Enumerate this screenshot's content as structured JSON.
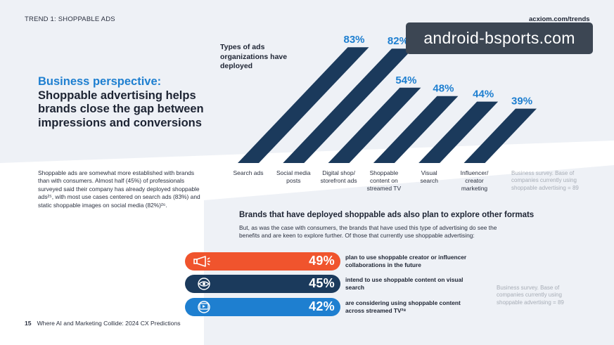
{
  "header": {
    "trend_label": "TREND 1: SHOPPABLE ADS",
    "site_url": "acxiom.com/trends"
  },
  "watermark": "android-bsports.com",
  "headline": {
    "accent": "Business perspective:",
    "main": "Shoppable advertising helps brands close the gap between impressions and conversions"
  },
  "body_copy": "Shoppable ads are somewhat more established with brands than with consumers. Almost half (45%) of professionals surveyed said their company has already deployed shoppable ads²⁵, with most use cases centered on search ads (83%) and static shoppable images on social media (82%)²⁶.",
  "chart_data": {
    "type": "bar",
    "title": "Types of ads organizations have deployed",
    "categories": [
      "Search ads",
      "Social media posts",
      "Digital shop/ storefront ads",
      "Shoppable content on streamed TV",
      "Visual search",
      "Influencer/ creator marketing"
    ],
    "values": [
      83,
      82,
      54,
      48,
      44,
      39
    ],
    "value_format": "{v}%",
    "ylim": [
      0,
      100
    ],
    "bar_colors": [
      "#1b3a5c",
      "#1b3a5c",
      "#1b3a5c",
      "#1b3a5c",
      "#1b3a5c",
      "#1b3a5c"
    ],
    "label_colors": [
      "#1e7fd0",
      "#1e7fd0",
      "#1e7fd0",
      "#1e7fd0",
      "#1e7fd0",
      "#1e7fd0"
    ],
    "grid": false,
    "source": "Business survey. Base of companies currently using shoppable advertising = 89"
  },
  "section2": {
    "title": "Brands that have deployed shoppable ads also plan to explore other formats",
    "intro": "But, as was the case with consumers, the brands that have used this type of advertising do see the benefits and are keen to explore further. Of those that currently use shoppable advertising:",
    "items": [
      {
        "pct": "49%",
        "text": "plan to use shoppable creator or influencer collaborations in the future",
        "color": "#f0542d",
        "icon": "megaphone-icon"
      },
      {
        "pct": "45%",
        "text": "intend to use shoppable content on visual search",
        "color": "#1b3a5c",
        "icon": "eye-icon"
      },
      {
        "pct": "42%",
        "text": "are considering using shoppable content across streamed TV²⁸",
        "color": "#1e7fd0",
        "icon": "tv-icon"
      }
    ],
    "source": "Business survey. Base of companies currently using shoppable advertising = 89"
  },
  "footer": {
    "page_number": "15",
    "text": "Where AI and Marketing Collide: 2024 CX Predictions"
  }
}
